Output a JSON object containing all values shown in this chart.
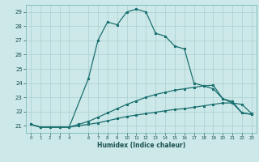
{
  "title": "",
  "xlabel": "Humidex (Indice chaleur)",
  "bg_color": "#cde8e8",
  "grid_color": "#aacfcf",
  "line_color": "#1a7070",
  "xlim": [
    -0.5,
    23.5
  ],
  "ylim": [
    20.5,
    29.5
  ],
  "yticks": [
    21,
    22,
    23,
    24,
    25,
    26,
    27,
    28,
    29
  ],
  "xticks": [
    0,
    1,
    2,
    3,
    4,
    6,
    7,
    8,
    9,
    10,
    11,
    12,
    13,
    14,
    15,
    16,
    17,
    18,
    19,
    20,
    21,
    22,
    23
  ],
  "line1_x": [
    0,
    1,
    2,
    3,
    4,
    5,
    6,
    7,
    8,
    9,
    10,
    11,
    12,
    13,
    14,
    15,
    16,
    17,
    18,
    19,
    20,
    21,
    22,
    23
  ],
  "line1_y": [
    21.1,
    20.9,
    20.9,
    20.9,
    20.9,
    21.0,
    21.1,
    21.2,
    21.35,
    21.5,
    21.65,
    21.75,
    21.85,
    21.95,
    22.05,
    22.15,
    22.2,
    22.3,
    22.4,
    22.5,
    22.6,
    22.6,
    21.9,
    21.8
  ],
  "line2_x": [
    0,
    1,
    2,
    3,
    4,
    5,
    6,
    7,
    8,
    9,
    10,
    11,
    12,
    13,
    14,
    15,
    16,
    17,
    18,
    19,
    20,
    21,
    22,
    23
  ],
  "line2_y": [
    21.1,
    20.9,
    20.9,
    20.9,
    20.9,
    21.1,
    21.3,
    21.6,
    21.9,
    22.2,
    22.5,
    22.75,
    23.0,
    23.2,
    23.35,
    23.5,
    23.6,
    23.7,
    23.8,
    23.85,
    22.9,
    22.7,
    21.9,
    21.8
  ],
  "line3_x": [
    0,
    1,
    2,
    3,
    4,
    6,
    7,
    8,
    9,
    10,
    11,
    12,
    13,
    14,
    15,
    16,
    17,
    18,
    19,
    20,
    21,
    22,
    23
  ],
  "line3_y": [
    21.1,
    20.9,
    20.9,
    20.9,
    20.9,
    24.3,
    27.0,
    28.3,
    28.1,
    29.0,
    29.2,
    29.0,
    27.5,
    27.3,
    26.6,
    26.4,
    24.0,
    23.8,
    23.6,
    22.9,
    22.6,
    22.5,
    21.85
  ]
}
